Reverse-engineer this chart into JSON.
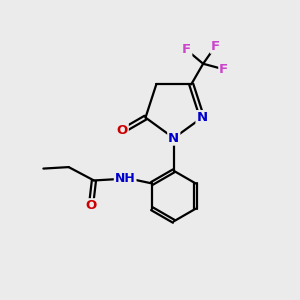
{
  "background_color": "#ebebeb",
  "bond_color": "#000000",
  "bond_width": 1.6,
  "atom_colors": {
    "N": "#0000cc",
    "O": "#cc0000",
    "F": "#cc44cc",
    "H": "#448888",
    "C": "#000000"
  },
  "font_size_atom": 9.5
}
